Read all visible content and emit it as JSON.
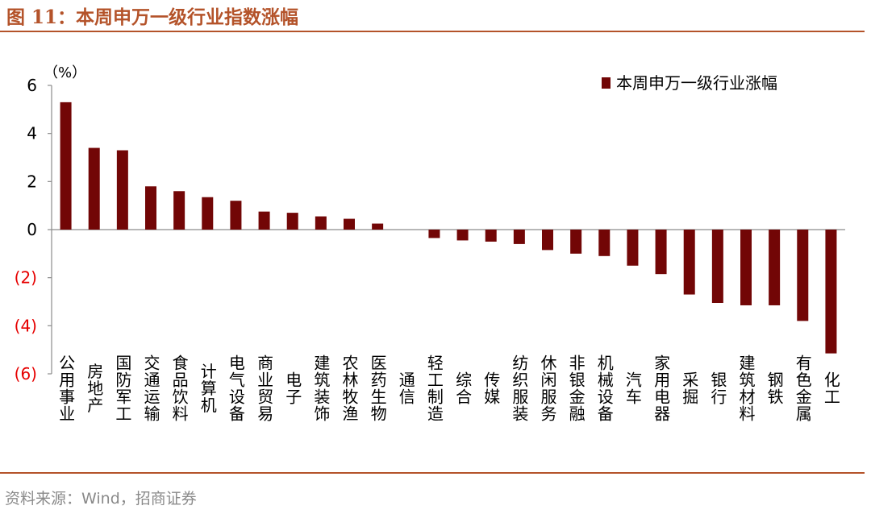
{
  "header": {
    "title": "图 11：本周申万一级行业指数涨幅"
  },
  "footer": {
    "source": "资料来源：Wind，招商证券"
  },
  "colors": {
    "accent": "#b4532a",
    "bar": "#720606",
    "negative_tick": "#e60000"
  },
  "chart_data": {
    "type": "bar",
    "title": "",
    "unit_label": "（%）",
    "xlabel": "",
    "ylabel": "",
    "ylim": [
      -6,
      6
    ],
    "yticks": [
      6,
      4,
      2,
      0,
      -2,
      -4,
      -6
    ],
    "ytick_labels": [
      "6",
      "4",
      "2",
      "0",
      "(2)",
      "(4)",
      "(6)"
    ],
    "legend": {
      "position": "top-right",
      "label": "本周申万一级行业涨幅"
    },
    "categories": [
      "公用事业",
      "房地产",
      "国防军工",
      "交通运输",
      "食品饮料",
      "计算机",
      "电气设备",
      "商业贸易",
      "电子",
      "建筑装饰",
      "农林牧渔",
      "医药生物",
      "通信",
      "轻工制造",
      "综合",
      "传媒",
      "纺织服装",
      "休闲服务",
      "非银金融",
      "机械设备",
      "汽车",
      "家用电器",
      "采掘",
      "银行",
      "建筑材料",
      "钢铁",
      "有色金属",
      "化工"
    ],
    "values": [
      5.3,
      3.4,
      3.3,
      1.8,
      1.6,
      1.35,
      1.2,
      0.75,
      0.7,
      0.55,
      0.45,
      0.25,
      0.0,
      -0.35,
      -0.45,
      -0.5,
      -0.6,
      -0.85,
      -1.0,
      -1.1,
      -1.5,
      -1.85,
      -2.7,
      -3.05,
      -3.15,
      -3.15,
      -3.8,
      -5.15
    ]
  }
}
